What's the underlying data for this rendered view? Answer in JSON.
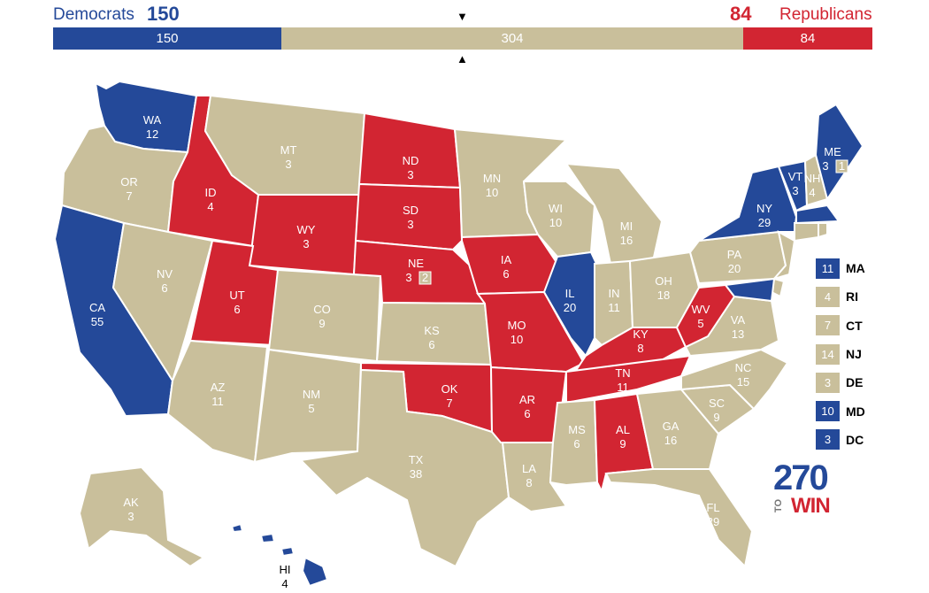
{
  "header": {
    "dem_label": "Democrats",
    "dem_total": "150",
    "rep_total": "84",
    "rep_label": "Republicans",
    "bar": {
      "dem": "150",
      "tossup": "304",
      "rep": "84"
    },
    "arrow_down": "▼",
    "arrow_up": "▲"
  },
  "colors": {
    "dem": "#244999",
    "rep": "#d22532",
    "tossup": "#c9bf9b"
  },
  "states": {
    "WA": {
      "abbr": "WA",
      "ev": "12",
      "party": "dem"
    },
    "OR": {
      "abbr": "OR",
      "ev": "7",
      "party": "tossup"
    },
    "CA": {
      "abbr": "CA",
      "ev": "55",
      "party": "dem"
    },
    "ID": {
      "abbr": "ID",
      "ev": "4",
      "party": "rep"
    },
    "NV": {
      "abbr": "NV",
      "ev": "6",
      "party": "tossup"
    },
    "MT": {
      "abbr": "MT",
      "ev": "3",
      "party": "tossup"
    },
    "WY": {
      "abbr": "WY",
      "ev": "3",
      "party": "rep"
    },
    "UT": {
      "abbr": "UT",
      "ev": "6",
      "party": "rep"
    },
    "AZ": {
      "abbr": "AZ",
      "ev": "11",
      "party": "tossup"
    },
    "CO": {
      "abbr": "CO",
      "ev": "9",
      "party": "tossup"
    },
    "NM": {
      "abbr": "NM",
      "ev": "5",
      "party": "tossup"
    },
    "ND": {
      "abbr": "ND",
      "ev": "3",
      "party": "rep"
    },
    "SD": {
      "abbr": "SD",
      "ev": "3",
      "party": "rep"
    },
    "NE": {
      "abbr": "NE",
      "ev": "3",
      "party": "rep",
      "extra": "2"
    },
    "KS": {
      "abbr": "KS",
      "ev": "6",
      "party": "tossup"
    },
    "OK": {
      "abbr": "OK",
      "ev": "7",
      "party": "rep"
    },
    "TX": {
      "abbr": "TX",
      "ev": "38",
      "party": "tossup"
    },
    "MN": {
      "abbr": "MN",
      "ev": "10",
      "party": "tossup"
    },
    "IA": {
      "abbr": "IA",
      "ev": "6",
      "party": "rep"
    },
    "MO": {
      "abbr": "MO",
      "ev": "10",
      "party": "rep"
    },
    "AR": {
      "abbr": "AR",
      "ev": "6",
      "party": "rep"
    },
    "LA": {
      "abbr": "LA",
      "ev": "8",
      "party": "tossup"
    },
    "WI": {
      "abbr": "WI",
      "ev": "10",
      "party": "tossup"
    },
    "IL": {
      "abbr": "IL",
      "ev": "20",
      "party": "dem"
    },
    "MI": {
      "abbr": "MI",
      "ev": "16",
      "party": "tossup"
    },
    "IN": {
      "abbr": "IN",
      "ev": "11",
      "party": "tossup"
    },
    "OH": {
      "abbr": "OH",
      "ev": "18",
      "party": "tossup"
    },
    "KY": {
      "abbr": "KY",
      "ev": "8",
      "party": "rep"
    },
    "TN": {
      "abbr": "TN",
      "ev": "11",
      "party": "rep"
    },
    "MS": {
      "abbr": "MS",
      "ev": "6",
      "party": "tossup"
    },
    "AL": {
      "abbr": "AL",
      "ev": "9",
      "party": "rep"
    },
    "GA": {
      "abbr": "GA",
      "ev": "16",
      "party": "tossup"
    },
    "FL": {
      "abbr": "FL",
      "ev": "29",
      "party": "tossup"
    },
    "SC": {
      "abbr": "SC",
      "ev": "9",
      "party": "tossup"
    },
    "NC": {
      "abbr": "NC",
      "ev": "15",
      "party": "tossup"
    },
    "VA": {
      "abbr": "VA",
      "ev": "13",
      "party": "tossup"
    },
    "WV": {
      "abbr": "WV",
      "ev": "5",
      "party": "rep"
    },
    "PA": {
      "abbr": "PA",
      "ev": "20",
      "party": "tossup"
    },
    "NY": {
      "abbr": "NY",
      "ev": "29",
      "party": "dem"
    },
    "VT": {
      "abbr": "VT",
      "ev": "3",
      "party": "dem"
    },
    "NH": {
      "abbr": "NH",
      "ev": "4",
      "party": "tossup"
    },
    "ME": {
      "abbr": "ME",
      "ev": "3",
      "party": "dem",
      "extra": "1"
    },
    "AK": {
      "abbr": "AK",
      "ev": "3",
      "party": "tossup"
    },
    "HI": {
      "abbr": "HI",
      "ev": "4",
      "party": "dem"
    }
  },
  "small_states": [
    {
      "abbr": "MA",
      "ev": "11",
      "party": "dem"
    },
    {
      "abbr": "RI",
      "ev": "4",
      "party": "tossup"
    },
    {
      "abbr": "CT",
      "ev": "7",
      "party": "tossup"
    },
    {
      "abbr": "NJ",
      "ev": "14",
      "party": "tossup"
    },
    {
      "abbr": "DE",
      "ev": "3",
      "party": "tossup"
    },
    {
      "abbr": "MD",
      "ev": "10",
      "party": "dem"
    },
    {
      "abbr": "DC",
      "ev": "3",
      "party": "dem"
    }
  ],
  "logo": {
    "number": "270",
    "to": "TO",
    "win": "WIN"
  }
}
